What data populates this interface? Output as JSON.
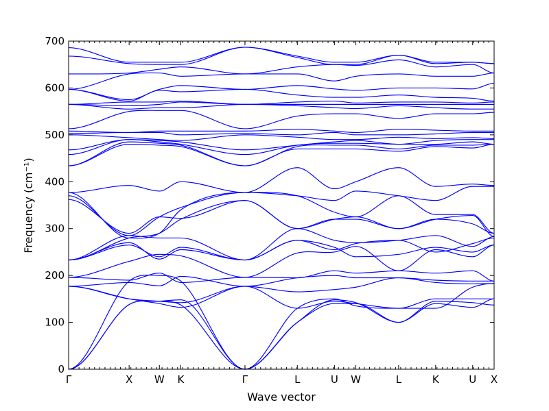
{
  "chart_data": {
    "type": "line",
    "title": "",
    "xlabel": "Wave vector",
    "ylabel": "Frequency (cm⁻¹)",
    "ylim": [
      0,
      700
    ],
    "yticks": [
      0,
      100,
      200,
      300,
      400,
      500,
      600,
      700
    ],
    "grid": false,
    "legend": "none",
    "line_color": "#0000ff",
    "high_symmetry_points": [
      {
        "label": "Γ",
        "x": 0.0
      },
      {
        "label": "X",
        "x": 1.0
      },
      {
        "label": "W",
        "x": 1.5
      },
      {
        "label": "K",
        "x": 1.854
      },
      {
        "label": "Γ",
        "x": 2.914
      },
      {
        "label": "L",
        "x": 3.78
      },
      {
        "label": "U",
        "x": 4.393
      },
      {
        "label": "W",
        "x": 4.747
      },
      {
        "label": "L",
        "x": 5.454
      },
      {
        "label": "K",
        "x": 6.066
      },
      {
        "label": "U",
        "x": 6.678
      },
      {
        "label": "X",
        "x": 7.032
      }
    ],
    "xlim": [
      0,
      7.032
    ],
    "series": [
      {
        "values": [
          0,
          138,
          145,
          137,
          0,
          100,
          148,
          142,
          100,
          145,
          142,
          137
        ]
      },
      {
        "values": [
          0,
          138,
          145,
          148,
          0,
          100,
          140,
          140,
          100,
          140,
          132,
          150
        ]
      },
      {
        "values": [
          0,
          188,
          200,
          188,
          0,
          130,
          150,
          135,
          130,
          150,
          150,
          150
        ]
      },
      {
        "values": [
          177,
          150,
          140,
          132,
          177,
          130,
          145,
          140,
          130,
          130,
          175,
          183
        ]
      },
      {
        "values": [
          177,
          150,
          145,
          142,
          177,
          165,
          170,
          175,
          195,
          185,
          182,
          183
        ]
      },
      {
        "values": [
          177,
          185,
          178,
          198,
          177,
          195,
          200,
          195,
          195,
          190,
          188,
          188
        ]
      },
      {
        "values": [
          196,
          190,
          205,
          185,
          196,
          195,
          210,
          205,
          210,
          205,
          210,
          188
        ]
      },
      {
        "values": [
          196,
          230,
          245,
          242,
          196,
          248,
          250,
          262,
          210,
          255,
          240,
          265
        ]
      },
      {
        "values": [
          233,
          270,
          235,
          255,
          233,
          275,
          260,
          240,
          245,
          260,
          250,
          265
        ]
      },
      {
        "values": [
          233,
          265,
          240,
          260,
          233,
          275,
          255,
          268,
          275,
          250,
          268,
          280
        ]
      },
      {
        "values": [
          233,
          285,
          280,
          280,
          233,
          300,
          275,
          270,
          275,
          285,
          262,
          283
        ]
      },
      {
        "values": [
          233,
          280,
          290,
          320,
          360,
          300,
          320,
          325,
          300,
          320,
          328,
          283
        ]
      },
      {
        "values": [
          362,
          290,
          325,
          322,
          360,
          300,
          320,
          320,
          300,
          320,
          310,
          290
        ]
      },
      {
        "values": [
          370,
          285,
          325,
          345,
          377,
          370,
          335,
          325,
          370,
          330,
          330,
          290
        ]
      },
      {
        "values": [
          377,
          280,
          290,
          340,
          377,
          370,
          360,
          380,
          370,
          360,
          390,
          390
        ]
      },
      {
        "values": [
          377,
          392,
          380,
          400,
          377,
          430,
          385,
          400,
          430,
          390,
          395,
          392
        ]
      },
      {
        "values": [
          434,
          480,
          478,
          475,
          434,
          470,
          470,
          470,
          465,
          475,
          472,
          480
        ]
      },
      {
        "values": [
          434,
          485,
          482,
          478,
          434,
          475,
          478,
          478,
          470,
          478,
          478,
          480
        ]
      },
      {
        "values": [
          458,
          490,
          485,
          480,
          458,
          478,
          482,
          482,
          480,
          480,
          485,
          480
        ]
      },
      {
        "values": [
          468,
          490,
          488,
          485,
          468,
          478,
          485,
          488,
          480,
          488,
          490,
          490
        ]
      },
      {
        "values": [
          500,
          494,
          490,
          488,
          500,
          495,
          490,
          490,
          495,
          492,
          494,
          492
        ]
      },
      {
        "values": [
          503,
          505,
          505,
          500,
          503,
          500,
          505,
          500,
          500,
          502,
          505,
          505
        ]
      },
      {
        "values": [
          508,
          505,
          508,
          508,
          508,
          512,
          508,
          505,
          512,
          510,
          508,
          508
        ]
      },
      {
        "values": [
          513,
          550,
          552,
          552,
          513,
          540,
          545,
          545,
          535,
          545,
          545,
          548
        ]
      },
      {
        "values": [
          565,
          555,
          558,
          558,
          565,
          562,
          558,
          556,
          562,
          558,
          555,
          555
        ]
      },
      {
        "values": [
          565,
          562,
          565,
          570,
          565,
          565,
          565,
          565,
          565,
          565,
          565,
          565
        ]
      },
      {
        "values": [
          565,
          570,
          570,
          572,
          565,
          570,
          572,
          568,
          570,
          570,
          568,
          570
        ]
      },
      {
        "values": [
          597,
          572,
          595,
          592,
          597,
          585,
          580,
          580,
          585,
          580,
          578,
          572
        ]
      },
      {
        "values": [
          597,
          575,
          597,
          605,
          597,
          605,
          598,
          595,
          600,
          600,
          598,
          610
        ]
      },
      {
        "values": [
          597,
          630,
          632,
          625,
          630,
          630,
          615,
          625,
          630,
          625,
          625,
          632
        ]
      },
      {
        "values": [
          630,
          632,
          640,
          645,
          630,
          645,
          650,
          648,
          660,
          645,
          650,
          632
        ]
      },
      {
        "values": [
          668,
          652,
          650,
          650,
          687,
          665,
          650,
          650,
          670,
          652,
          655,
          652
        ]
      },
      {
        "values": [
          686,
          655,
          655,
          655,
          687,
          668,
          655,
          655,
          670,
          655,
          655,
          652
        ]
      }
    ]
  }
}
